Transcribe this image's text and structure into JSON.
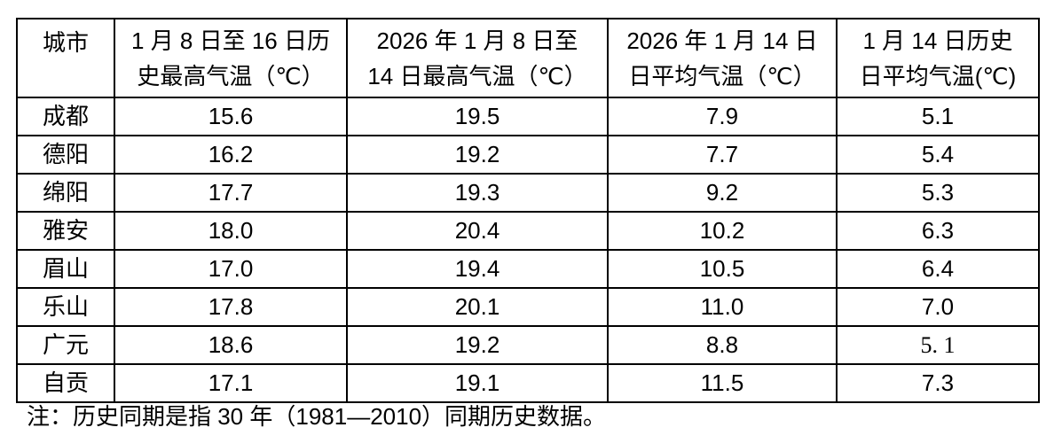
{
  "table": {
    "headers": {
      "city": "城市",
      "hist_max_jan8_16": "1 月 8 日至 16 日历\n史最高气温（℃）",
      "max_2026_jan8_14": "2026 年 1 月 8 日至\n14 日最高气温（℃）",
      "avg_2026_jan14": "2026 年 1 月 14 日\n日平均气温（℃）",
      "hist_avg_jan14": "1 月 14 日历史\n日平均气温(℃)"
    },
    "rows": [
      {
        "city": "成都",
        "values": [
          "15.6",
          "19.5",
          "7.9",
          "5.1"
        ]
      },
      {
        "city": "德阳",
        "values": [
          "16.2",
          "19.2",
          "7.7",
          "5.4"
        ]
      },
      {
        "city": "绵阳",
        "values": [
          "17.7",
          "19.3",
          "9.2",
          "5.3"
        ]
      },
      {
        "city": "雅安",
        "values": [
          "18.0",
          "20.4",
          "10.2",
          "6.3"
        ]
      },
      {
        "city": "眉山",
        "values": [
          "17.0",
          "19.4",
          "10.5",
          "6.4"
        ]
      },
      {
        "city": "乐山",
        "values": [
          "17.8",
          "20.1",
          "11.0",
          "7.0"
        ]
      },
      {
        "city": "广元",
        "values": [
          "18.6",
          "19.2",
          "8.8",
          "5. 1"
        ]
      },
      {
        "city": "自贡",
        "values": [
          "17.1",
          "19.1",
          "11.5",
          "7.3"
        ]
      }
    ]
  },
  "note": "注：历史同期是指 30 年（1981—2010）同期历史数据。",
  "colors": {
    "border": "#000000",
    "text": "#000000",
    "background": "#ffffff"
  }
}
